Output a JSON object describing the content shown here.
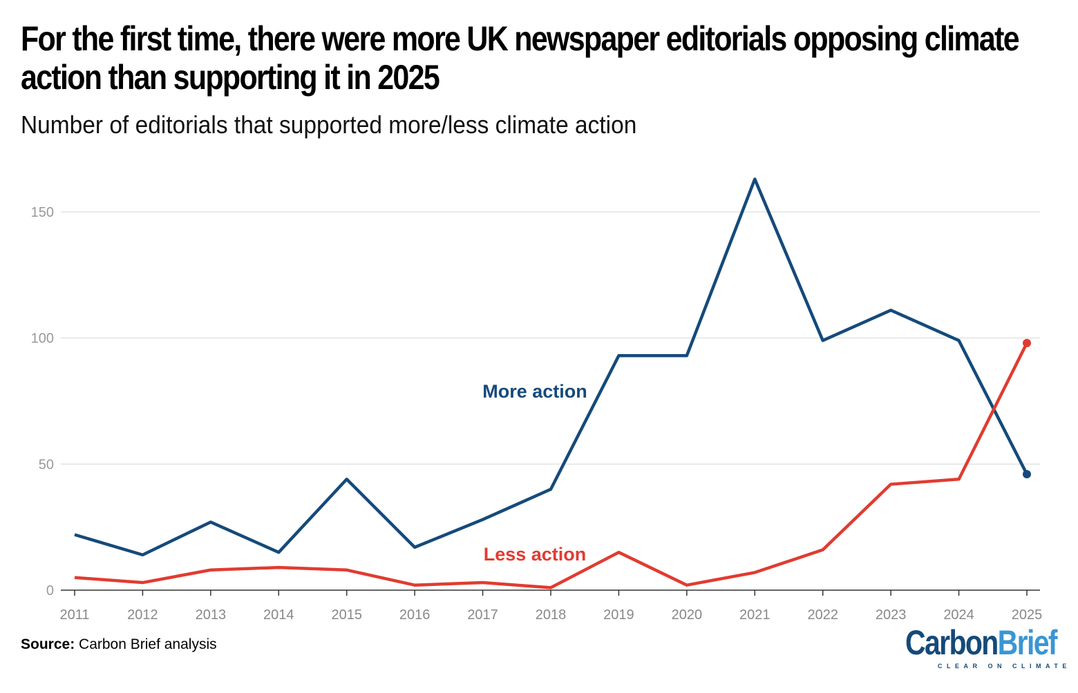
{
  "chart_data": {
    "type": "line",
    "title": "For the first time, there were more UK newspaper editorials opposing climate action than supporting it in 2025",
    "subtitle": "Number of editorials that supported more/less climate action",
    "x": [
      2011,
      2012,
      2013,
      2014,
      2015,
      2016,
      2017,
      2018,
      2019,
      2020,
      2021,
      2022,
      2023,
      2024,
      2025
    ],
    "series": [
      {
        "name": "More action",
        "color": "#154a7a",
        "values": [
          22,
          14,
          27,
          15,
          44,
          17,
          28,
          40,
          93,
          93,
          163,
          99,
          111,
          99,
          46
        ]
      },
      {
        "name": "Less action",
        "color": "#e03c31",
        "values": [
          5,
          3,
          8,
          9,
          8,
          2,
          3,
          1,
          15,
          2,
          7,
          16,
          42,
          44,
          98
        ]
      }
    ],
    "yticks": [
      0,
      50,
      100,
      150
    ],
    "ylim": [
      0,
      165
    ],
    "xlim": [
      2011,
      2025
    ],
    "grid": "horizontal",
    "legend": "inline labels"
  },
  "source_label": "Source:",
  "source_text": "Carbon Brief analysis",
  "logo": {
    "part1": "Carbon",
    "part2": "Brief",
    "tagline": "CLEAR ON CLIMATE",
    "color1": "#154a7a",
    "color2": "#3a96d4"
  }
}
